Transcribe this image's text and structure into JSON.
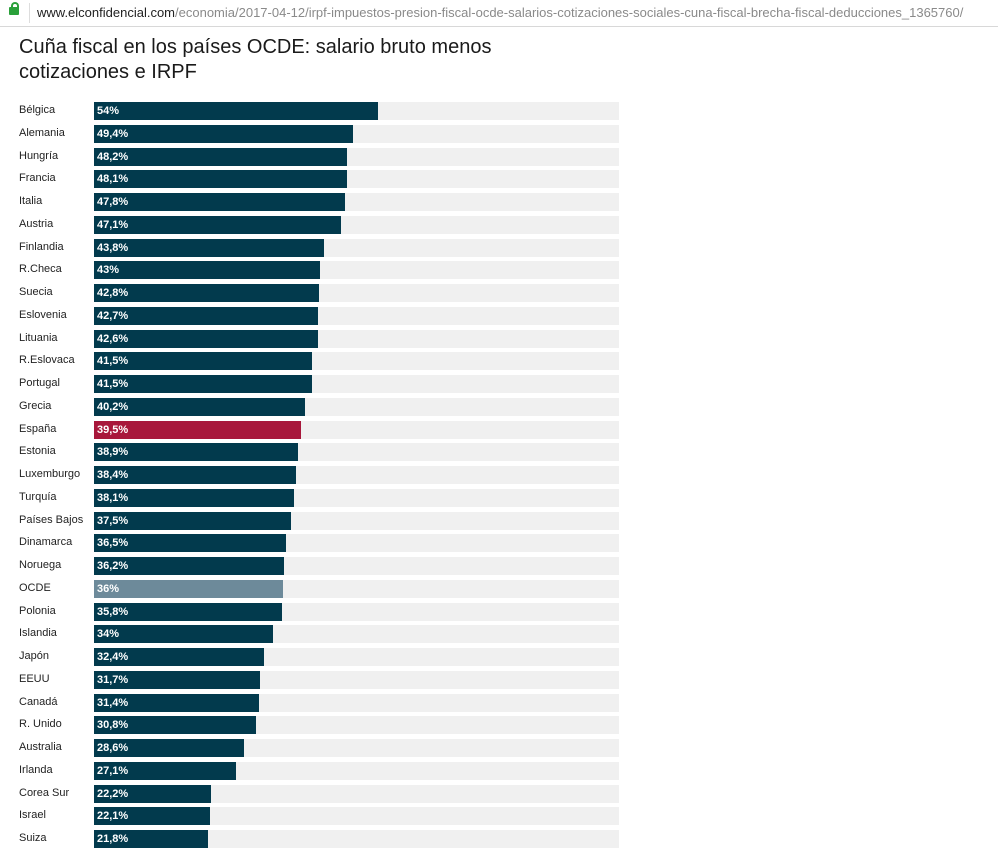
{
  "browser": {
    "url_domain": "www.elconfidencial.com",
    "url_path": "/economia/2017-04-12/irpf-impuestos-presion-fiscal-ocde-salarios-cotizaciones-sociales-cuna-fiscal-brecha-fiscal-deducciones_1365760/",
    "icon": "lock-icon"
  },
  "colors": {
    "default": "#023a4d",
    "highlight": "#a8173b",
    "average": "#6d8a9a",
    "track": "#f0f0f0"
  },
  "chart_data": {
    "type": "bar",
    "orientation": "horizontal",
    "title": "Cuña fiscal en los países OCDE: salario bruto menos cotizaciones e IRPF",
    "xlim": [
      0,
      100
    ],
    "grid": false,
    "categories": [
      "Bélgica",
      "Alemania",
      "Hungría",
      "Francia",
      "Italia",
      "Austria",
      "Finlandia",
      "R.Checa",
      "Suecia",
      "Eslovenia",
      "Lituania",
      "R.Eslovaca",
      "Portugal",
      "Grecia",
      "España",
      "Estonia",
      "Luxemburgo",
      "Turquía",
      "Países Bajos",
      "Dinamarca",
      "Noruega",
      "OCDE",
      "Polonia",
      "Islandia",
      "Japón",
      "EEUU",
      "Canadá",
      "R. Unido",
      "Australia",
      "Irlanda",
      "Corea Sur",
      "Israel",
      "Suiza"
    ],
    "values": [
      54,
      49.4,
      48.2,
      48.1,
      47.8,
      47.1,
      43.8,
      43,
      42.8,
      42.7,
      42.6,
      41.5,
      41.5,
      40.2,
      39.5,
      38.9,
      38.4,
      38.1,
      37.5,
      36.5,
      36.2,
      36,
      35.8,
      34,
      32.4,
      31.7,
      31.4,
      30.8,
      28.6,
      27.1,
      22.2,
      22.1,
      21.8
    ],
    "labels": [
      "54%",
      "49,4%",
      "48,2%",
      "48,1%",
      "47,8%",
      "47,1%",
      "43,8%",
      "43%",
      "42,8%",
      "42,7%",
      "42,6%",
      "41,5%",
      "41,5%",
      "40,2%",
      "39,5%",
      "38,9%",
      "38,4%",
      "38,1%",
      "37,5%",
      "36,5%",
      "36,2%",
      "36%",
      "35,8%",
      "34%",
      "32,4%",
      "31,7%",
      "31,4%",
      "30,8%",
      "28,6%",
      "27,1%",
      "22,2%",
      "22,1%",
      "21,8%"
    ],
    "highlight": "España",
    "average": "OCDE"
  }
}
